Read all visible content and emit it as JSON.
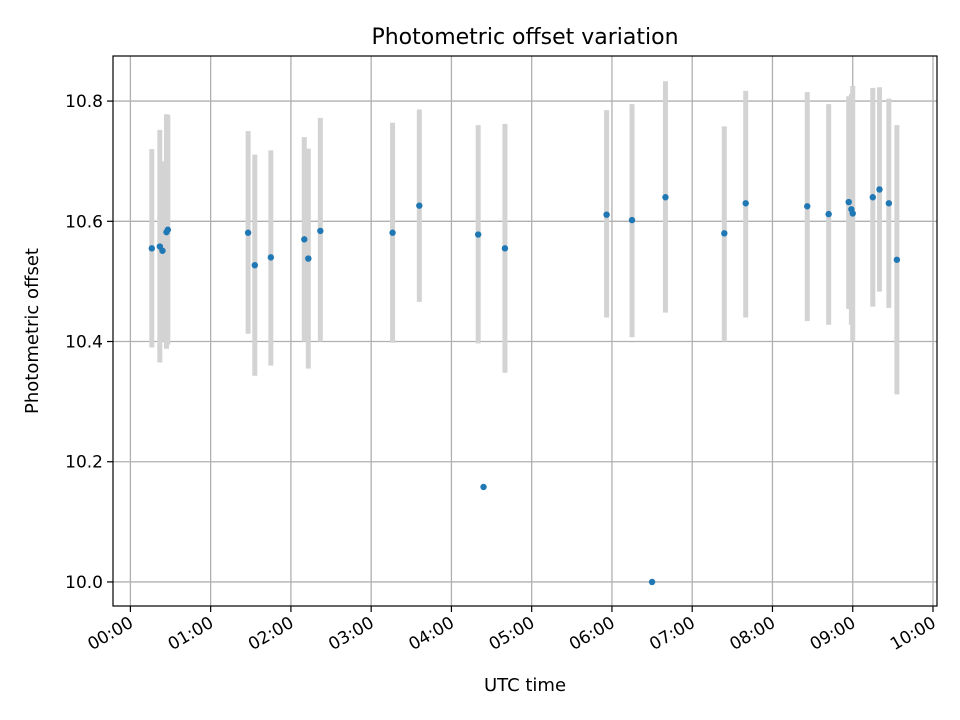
{
  "chart_data": {
    "type": "scatter",
    "title": "Photometric offset variation",
    "xlabel": "UTC time",
    "ylabel": "Photometric offset",
    "xlim": [
      "23:47",
      "10:03"
    ],
    "ylim": [
      9.96,
      10.875
    ],
    "grid": true,
    "x_ticks": [
      "00:00",
      "01:00",
      "02:00",
      "03:00",
      "04:00",
      "05:00",
      "06:00",
      "07:00",
      "08:00",
      "09:00",
      "10:00"
    ],
    "y_ticks": [
      10.0,
      10.2,
      10.4,
      10.6,
      10.8
    ],
    "y_tick_labels": [
      "10.0",
      "10.2",
      "10.4",
      "10.6",
      "10.8"
    ],
    "point_color": "#1f77b4",
    "errorbar_color": "#d3d3d3",
    "points": [
      {
        "t": "00:16",
        "y": 10.555,
        "lo": 10.39,
        "hi": 10.72
      },
      {
        "t": "00:22",
        "y": 10.558,
        "lo": 10.365,
        "hi": 10.752
      },
      {
        "t": "00:24",
        "y": 10.551,
        "lo": 10.4,
        "hi": 10.7
      },
      {
        "t": "00:27",
        "y": 10.582,
        "lo": 10.388,
        "hi": 10.778
      },
      {
        "t": "00:28",
        "y": 10.586,
        "lo": 10.395,
        "hi": 10.777
      },
      {
        "t": "01:28",
        "y": 10.581,
        "lo": 10.413,
        "hi": 10.75
      },
      {
        "t": "01:33",
        "y": 10.527,
        "lo": 10.343,
        "hi": 10.711
      },
      {
        "t": "01:45",
        "y": 10.54,
        "lo": 10.36,
        "hi": 10.718
      },
      {
        "t": "02:10",
        "y": 10.57,
        "lo": 10.4,
        "hi": 10.74
      },
      {
        "t": "02:13",
        "y": 10.538,
        "lo": 10.355,
        "hi": 10.721
      },
      {
        "t": "02:22",
        "y": 10.584,
        "lo": 10.4,
        "hi": 10.772
      },
      {
        "t": "03:16",
        "y": 10.581,
        "lo": 10.398,
        "hi": 10.764
      },
      {
        "t": "03:36",
        "y": 10.626,
        "lo": 10.466,
        "hi": 10.786
      },
      {
        "t": "04:20",
        "y": 10.578,
        "lo": 10.397,
        "hi": 10.76
      },
      {
        "t": "04:24",
        "y": 10.158,
        "lo": 10.158,
        "hi": 10.158
      },
      {
        "t": "04:40",
        "y": 10.555,
        "lo": 10.348,
        "hi": 10.762
      },
      {
        "t": "05:56",
        "y": 10.611,
        "lo": 10.44,
        "hi": 10.785
      },
      {
        "t": "06:15",
        "y": 10.602,
        "lo": 10.407,
        "hi": 10.795
      },
      {
        "t": "06:30",
        "y": 10.0,
        "lo": 10.0,
        "hi": 10.0
      },
      {
        "t": "06:40",
        "y": 10.64,
        "lo": 10.448,
        "hi": 10.833
      },
      {
        "t": "07:24",
        "y": 10.58,
        "lo": 10.4,
        "hi": 10.758
      },
      {
        "t": "07:40",
        "y": 10.63,
        "lo": 10.44,
        "hi": 10.817
      },
      {
        "t": "08:26",
        "y": 10.625,
        "lo": 10.434,
        "hi": 10.815
      },
      {
        "t": "08:42",
        "y": 10.612,
        "lo": 10.428,
        "hi": 10.795
      },
      {
        "t": "08:57",
        "y": 10.632,
        "lo": 10.454,
        "hi": 10.808
      },
      {
        "t": "08:59",
        "y": 10.62,
        "lo": 10.428,
        "hi": 10.812
      },
      {
        "t": "09:00",
        "y": 10.613,
        "lo": 10.4,
        "hi": 10.825
      },
      {
        "t": "09:15",
        "y": 10.64,
        "lo": 10.458,
        "hi": 10.822
      },
      {
        "t": "09:20",
        "y": 10.653,
        "lo": 10.483,
        "hi": 10.823
      },
      {
        "t": "09:27",
        "y": 10.63,
        "lo": 10.456,
        "hi": 10.804
      },
      {
        "t": "09:33",
        "y": 10.536,
        "lo": 10.312,
        "hi": 10.76
      }
    ]
  }
}
